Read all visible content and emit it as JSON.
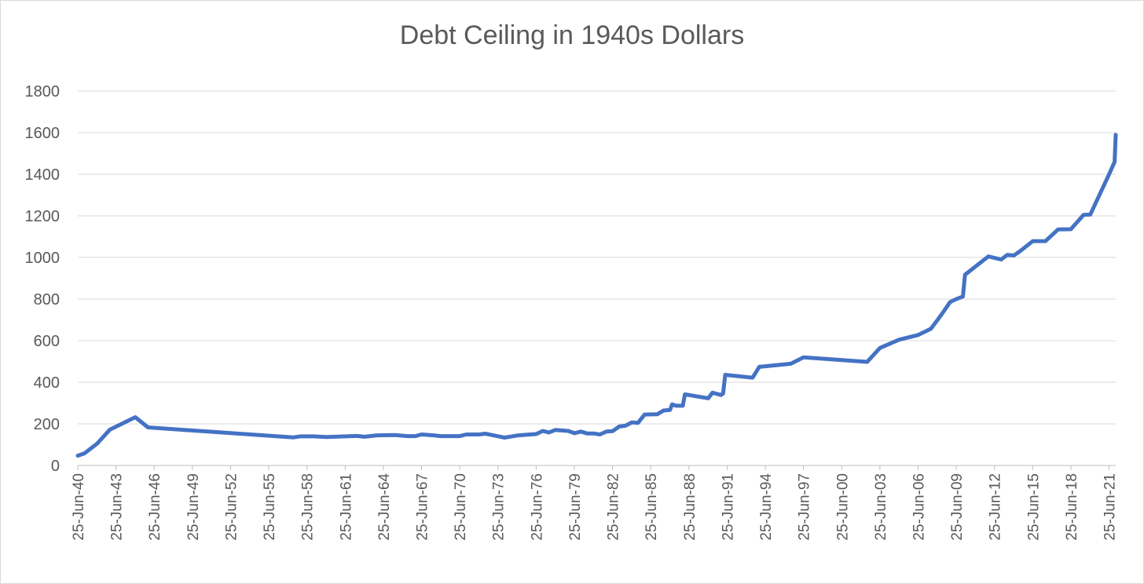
{
  "chart_data": {
    "type": "line",
    "title": "Debt Ceiling in 1940s Dollars",
    "xlabel": "",
    "ylabel": "",
    "ylim": [
      0,
      1800
    ],
    "yticks": [
      0,
      200,
      400,
      600,
      800,
      1000,
      1200,
      1400,
      1600,
      1800
    ],
    "xlim": [
      "1940-06-25",
      "2022-01-01"
    ],
    "xticks": [
      {
        "label": "25-Jun-40",
        "date": "1940-06-25"
      },
      {
        "label": "25-Jun-43",
        "date": "1943-06-25"
      },
      {
        "label": "25-Jun-46",
        "date": "1946-06-25"
      },
      {
        "label": "25-Jun-49",
        "date": "1949-06-25"
      },
      {
        "label": "25-Jun-52",
        "date": "1952-06-25"
      },
      {
        "label": "25-Jun-55",
        "date": "1955-06-25"
      },
      {
        "label": "25-Jun-58",
        "date": "1958-06-25"
      },
      {
        "label": "25-Jun-61",
        "date": "1961-06-25"
      },
      {
        "label": "25-Jun-64",
        "date": "1964-06-25"
      },
      {
        "label": "25-Jun-67",
        "date": "1967-06-25"
      },
      {
        "label": "25-Jun-70",
        "date": "1970-06-25"
      },
      {
        "label": "25-Jun-73",
        "date": "1973-06-25"
      },
      {
        "label": "25-Jun-76",
        "date": "1976-06-25"
      },
      {
        "label": "25-Jun-79",
        "date": "1979-06-25"
      },
      {
        "label": "25-Jun-82",
        "date": "1982-06-25"
      },
      {
        "label": "25-Jun-85",
        "date": "1985-06-25"
      },
      {
        "label": "25-Jun-88",
        "date": "1988-06-25"
      },
      {
        "label": "25-Jun-91",
        "date": "1991-06-25"
      },
      {
        "label": "25-Jun-94",
        "date": "1994-06-25"
      },
      {
        "label": "25-Jun-97",
        "date": "1997-06-25"
      },
      {
        "label": "25-Jun-00",
        "date": "2000-06-25"
      },
      {
        "label": "25-Jun-03",
        "date": "2003-06-25"
      },
      {
        "label": "25-Jun-06",
        "date": "2006-06-25"
      },
      {
        "label": "25-Jun-09",
        "date": "2009-06-25"
      },
      {
        "label": "25-Jun-12",
        "date": "2012-06-25"
      },
      {
        "label": "25-Jun-15",
        "date": "2015-06-25"
      },
      {
        "label": "25-Jun-18",
        "date": "2018-06-25"
      },
      {
        "label": "25-Jun-21",
        "date": "2021-06-25"
      }
    ],
    "grid": true,
    "legend": "none",
    "series": [
      {
        "color": "#4472c4",
        "points": [
          {
            "x": "1940-06-25",
            "y": 47
          },
          {
            "x": "1941-01-01",
            "y": 58
          },
          {
            "x": "1942-01-01",
            "y": 105
          },
          {
            "x": "1943-01-01",
            "y": 172
          },
          {
            "x": "1945-01-01",
            "y": 232
          },
          {
            "x": "1946-01-01",
            "y": 183
          },
          {
            "x": "1957-06-01",
            "y": 135
          },
          {
            "x": "1958-01-01",
            "y": 140
          },
          {
            "x": "1959-01-01",
            "y": 140
          },
          {
            "x": "1960-01-01",
            "y": 137
          },
          {
            "x": "1962-06-01",
            "y": 142
          },
          {
            "x": "1963-01-01",
            "y": 138
          },
          {
            "x": "1964-01-01",
            "y": 145
          },
          {
            "x": "1965-06-01",
            "y": 146
          },
          {
            "x": "1966-06-01",
            "y": 141
          },
          {
            "x": "1967-01-01",
            "y": 141
          },
          {
            "x": "1967-06-25",
            "y": 149
          },
          {
            "x": "1968-06-01",
            "y": 145
          },
          {
            "x": "1969-01-01",
            "y": 141
          },
          {
            "x": "1970-01-01",
            "y": 141
          },
          {
            "x": "1970-06-25",
            "y": 141
          },
          {
            "x": "1971-01-01",
            "y": 149
          },
          {
            "x": "1972-01-01",
            "y": 149
          },
          {
            "x": "1972-06-25",
            "y": 153
          },
          {
            "x": "1974-01-01",
            "y": 134
          },
          {
            "x": "1975-01-01",
            "y": 144
          },
          {
            "x": "1976-01-01",
            "y": 149
          },
          {
            "x": "1976-06-25",
            "y": 151
          },
          {
            "x": "1977-01-01",
            "y": 166
          },
          {
            "x": "1977-06-25",
            "y": 159
          },
          {
            "x": "1978-01-01",
            "y": 171
          },
          {
            "x": "1979-01-01",
            "y": 166
          },
          {
            "x": "1979-06-25",
            "y": 155
          },
          {
            "x": "1980-01-01",
            "y": 163
          },
          {
            "x": "1980-06-25",
            "y": 154
          },
          {
            "x": "1981-01-01",
            "y": 154
          },
          {
            "x": "1981-06-25",
            "y": 149
          },
          {
            "x": "1982-01-01",
            "y": 163
          },
          {
            "x": "1982-06-25",
            "y": 165
          },
          {
            "x": "1983-01-01",
            "y": 187
          },
          {
            "x": "1983-06-25",
            "y": 191
          },
          {
            "x": "1984-01-01",
            "y": 207
          },
          {
            "x": "1984-06-25",
            "y": 205
          },
          {
            "x": "1985-01-01",
            "y": 245
          },
          {
            "x": "1986-01-01",
            "y": 246
          },
          {
            "x": "1986-06-25",
            "y": 264
          },
          {
            "x": "1987-01-01",
            "y": 267
          },
          {
            "x": "1987-03-01",
            "y": 294
          },
          {
            "x": "1987-06-25",
            "y": 287
          },
          {
            "x": "1988-01-01",
            "y": 287
          },
          {
            "x": "1988-03-01",
            "y": 342
          },
          {
            "x": "1990-01-01",
            "y": 323
          },
          {
            "x": "1990-05-01",
            "y": 350
          },
          {
            "x": "1991-01-01",
            "y": 339
          },
          {
            "x": "1991-03-01",
            "y": 346
          },
          {
            "x": "1991-05-01",
            "y": 436
          },
          {
            "x": "1993-06-25",
            "y": 422
          },
          {
            "x": "1994-01-01",
            "y": 474
          },
          {
            "x": "1996-06-25",
            "y": 489
          },
          {
            "x": "1997-06-25",
            "y": 520
          },
          {
            "x": "2002-06-25",
            "y": 498
          },
          {
            "x": "2003-06-25",
            "y": 565
          },
          {
            "x": "2005-01-01",
            "y": 605
          },
          {
            "x": "2006-06-25",
            "y": 627
          },
          {
            "x": "2007-06-25",
            "y": 657
          },
          {
            "x": "2008-01-01",
            "y": 699
          },
          {
            "x": "2008-06-25",
            "y": 740
          },
          {
            "x": "2009-01-01",
            "y": 786
          },
          {
            "x": "2009-06-25",
            "y": 800
          },
          {
            "x": "2010-01-01",
            "y": 812
          },
          {
            "x": "2010-03-01",
            "y": 917
          },
          {
            "x": "2012-01-01",
            "y": 1005
          },
          {
            "x": "2013-01-01",
            "y": 990
          },
          {
            "x": "2013-06-25",
            "y": 1012
          },
          {
            "x": "2014-01-01",
            "y": 1010
          },
          {
            "x": "2014-06-25",
            "y": 1030
          },
          {
            "x": "2015-06-25",
            "y": 1078
          },
          {
            "x": "2016-06-25",
            "y": 1079
          },
          {
            "x": "2017-06-25",
            "y": 1135
          },
          {
            "x": "2018-06-25",
            "y": 1136
          },
          {
            "x": "2019-06-25",
            "y": 1205
          },
          {
            "x": "2020-01-01",
            "y": 1206
          },
          {
            "x": "2021-06-25",
            "y": 1400
          },
          {
            "x": "2021-12-01",
            "y": 1460
          },
          {
            "x": "2022-01-01",
            "y": 1590
          }
        ]
      }
    ]
  }
}
